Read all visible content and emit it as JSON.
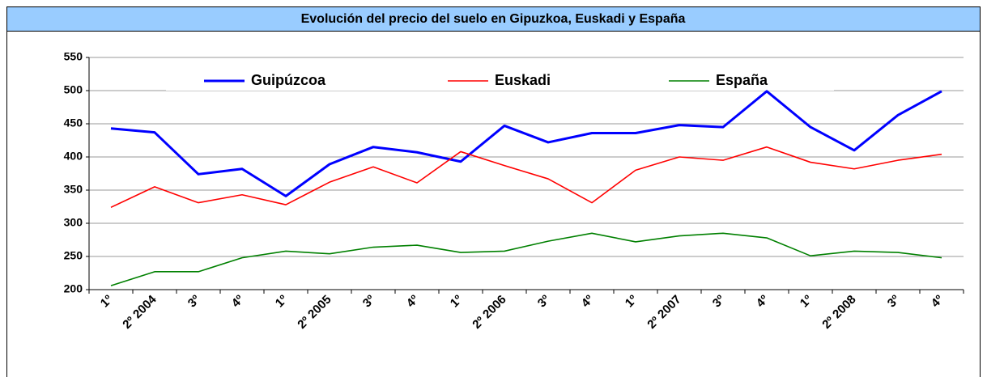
{
  "chart_data": {
    "type": "line",
    "title": "Evolución del precio del suelo en Gipuzkoa, Euskadi y España",
    "categories": [
      "1º",
      "2º 2004",
      "3º",
      "4º",
      "1º",
      "2º 2005",
      "3º",
      "4º",
      "1º",
      "2º 2006",
      "3º",
      "4º",
      "1º",
      "2º 2007",
      "3º",
      "4º",
      "1º",
      "2º 2008",
      "3º",
      "4º"
    ],
    "series": [
      {
        "name": "Guipúzcoa",
        "color": "#0000ff",
        "values": [
          443,
          437,
          374,
          382,
          341,
          389,
          415,
          407,
          393,
          447,
          422,
          436,
          436,
          448,
          445,
          499,
          445,
          410,
          463,
          499
        ]
      },
      {
        "name": "Euskadi",
        "color": "#ff0000",
        "values": [
          324,
          355,
          331,
          343,
          328,
          362,
          385,
          361,
          408,
          387,
          367,
          331,
          380,
          400,
          395,
          415,
          392,
          382,
          395,
          404
        ]
      },
      {
        "name": "España",
        "color": "#008000",
        "values": [
          206,
          227,
          227,
          248,
          258,
          254,
          264,
          267,
          256,
          258,
          273,
          285,
          272,
          281,
          285,
          278,
          251,
          258,
          256,
          248
        ]
      }
    ],
    "ylim": [
      200,
      550
    ],
    "yticks": [
      200,
      250,
      300,
      350,
      400,
      450,
      500,
      550
    ],
    "grid": true,
    "legend": "top"
  }
}
